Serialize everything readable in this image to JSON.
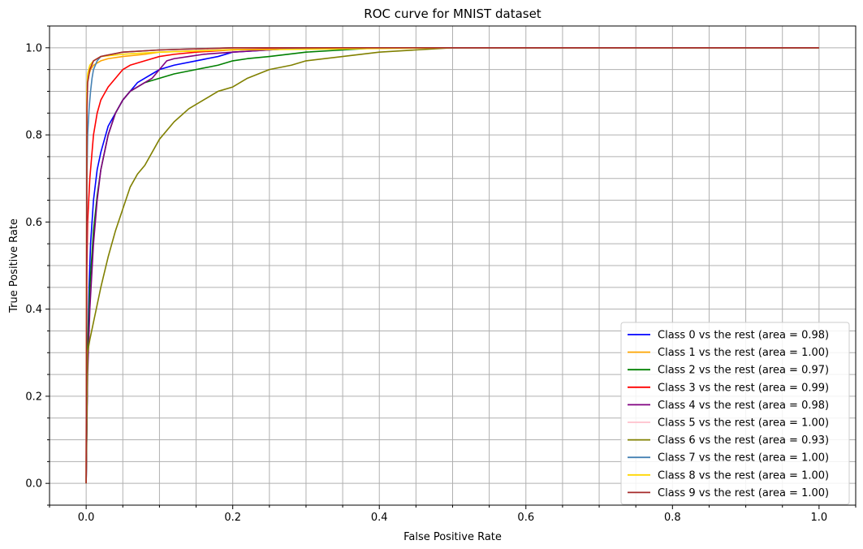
{
  "chart_data": {
    "type": "line",
    "title": "ROC curve for MNIST dataset",
    "xlabel": "False Positive Rate",
    "ylabel": "True Positive Rate",
    "xlim": [
      -0.05,
      1.05
    ],
    "ylim": [
      -0.05,
      1.05
    ],
    "x_ticks": [
      "0.0",
      "0.2",
      "0.4",
      "0.6",
      "0.8",
      "1.0"
    ],
    "y_ticks": [
      "0.0",
      "0.2",
      "0.4",
      "0.6",
      "0.8",
      "1.0"
    ],
    "grid": true,
    "legend_position": "lower-right",
    "series": [
      {
        "name": "Class 0 vs the rest (area = 0.98)",
        "color": "#0000ff",
        "x": [
          0,
          0.002,
          0.004,
          0.006,
          0.01,
          0.015,
          0.02,
          0.025,
          0.03,
          0.04,
          0.05,
          0.06,
          0.07,
          0.08,
          0.09,
          0.1,
          0.12,
          0.15,
          0.18,
          0.2,
          0.25,
          0.3,
          0.4,
          0.5,
          0.7,
          1.0
        ],
        "y": [
          0,
          0.3,
          0.45,
          0.55,
          0.65,
          0.72,
          0.76,
          0.79,
          0.82,
          0.85,
          0.88,
          0.9,
          0.92,
          0.93,
          0.94,
          0.95,
          0.96,
          0.97,
          0.98,
          0.99,
          0.995,
          1.0,
          1.0,
          1.0,
          1.0,
          1.0
        ]
      },
      {
        "name": "Class 1 vs the rest (area = 1.00)",
        "color": "#ffa500",
        "x": [
          0,
          0.001,
          0.002,
          0.004,
          0.006,
          0.01,
          0.02,
          0.03,
          0.05,
          0.08,
          0.1,
          0.15,
          0.2,
          0.3,
          0.4,
          0.6,
          1.0
        ],
        "y": [
          0,
          0.88,
          0.92,
          0.94,
          0.95,
          0.96,
          0.97,
          0.975,
          0.98,
          0.985,
          0.99,
          0.993,
          0.996,
          0.998,
          1.0,
          1.0,
          1.0
        ]
      },
      {
        "name": "Class 2 vs the rest (area = 0.97)",
        "color": "#008000",
        "x": [
          0,
          0.002,
          0.005,
          0.01,
          0.015,
          0.02,
          0.03,
          0.04,
          0.05,
          0.06,
          0.07,
          0.08,
          0.1,
          0.12,
          0.15,
          0.18,
          0.2,
          0.22,
          0.25,
          0.3,
          0.35,
          0.4,
          0.5,
          1.0
        ],
        "y": [
          0,
          0.3,
          0.45,
          0.58,
          0.66,
          0.72,
          0.8,
          0.85,
          0.88,
          0.9,
          0.91,
          0.92,
          0.93,
          0.94,
          0.95,
          0.96,
          0.97,
          0.975,
          0.98,
          0.99,
          0.995,
          1.0,
          1.0,
          1.0
        ]
      },
      {
        "name": "Class 3 vs the rest (area = 0.99)",
        "color": "#ff0000",
        "x": [
          0,
          0.001,
          0.002,
          0.005,
          0.008,
          0.01,
          0.015,
          0.02,
          0.03,
          0.04,
          0.05,
          0.06,
          0.08,
          0.1,
          0.12,
          0.15,
          0.2,
          0.3,
          1.0
        ],
        "y": [
          0,
          0.5,
          0.6,
          0.7,
          0.76,
          0.8,
          0.85,
          0.88,
          0.91,
          0.93,
          0.95,
          0.96,
          0.97,
          0.98,
          0.985,
          0.99,
          0.995,
          1.0,
          1.0
        ]
      },
      {
        "name": "Class 4 vs the rest (area = 0.98)",
        "color": "#800080",
        "x": [
          0,
          0.002,
          0.005,
          0.01,
          0.015,
          0.02,
          0.03,
          0.04,
          0.05,
          0.06,
          0.07,
          0.08,
          0.09,
          0.1,
          0.11,
          0.12,
          0.14,
          0.16,
          0.2,
          0.25,
          0.3,
          0.4,
          1.0
        ],
        "y": [
          0,
          0.25,
          0.4,
          0.55,
          0.65,
          0.72,
          0.8,
          0.85,
          0.88,
          0.9,
          0.91,
          0.92,
          0.93,
          0.95,
          0.97,
          0.975,
          0.98,
          0.985,
          0.99,
          0.995,
          1.0,
          1.0,
          1.0
        ]
      },
      {
        "name": "Class 5 vs the rest (area = 1.00)",
        "color": "#ffc0cb",
        "x": [
          0,
          0.001,
          0.002,
          0.005,
          0.01,
          0.02,
          0.05,
          0.1,
          0.2,
          0.4,
          1.0
        ],
        "y": [
          0,
          0.85,
          0.92,
          0.95,
          0.97,
          0.98,
          0.99,
          0.995,
          1.0,
          1.0,
          1.0
        ]
      },
      {
        "name": "Class 6 vs the rest (area = 0.93)",
        "color": "#808000",
        "x": [
          0,
          0.002,
          0.005,
          0.01,
          0.015,
          0.02,
          0.03,
          0.04,
          0.05,
          0.06,
          0.07,
          0.08,
          0.09,
          0.1,
          0.12,
          0.14,
          0.16,
          0.18,
          0.2,
          0.22,
          0.25,
          0.28,
          0.3,
          0.35,
          0.4,
          0.5,
          0.6,
          1.0
        ],
        "y": [
          0,
          0.3,
          0.33,
          0.37,
          0.41,
          0.45,
          0.52,
          0.58,
          0.63,
          0.68,
          0.71,
          0.73,
          0.76,
          0.79,
          0.83,
          0.86,
          0.88,
          0.9,
          0.91,
          0.93,
          0.95,
          0.96,
          0.97,
          0.98,
          0.99,
          1.0,
          1.0,
          1.0
        ]
      },
      {
        "name": "Class 7 vs the rest (area = 1.00)",
        "color": "#4682b4",
        "x": [
          0,
          0.001,
          0.002,
          0.004,
          0.006,
          0.008,
          0.01,
          0.015,
          0.02,
          0.05,
          0.1,
          0.2,
          1.0
        ],
        "y": [
          0,
          0.7,
          0.8,
          0.86,
          0.9,
          0.93,
          0.95,
          0.97,
          0.98,
          0.99,
          0.995,
          1.0,
          1.0
        ]
      },
      {
        "name": "Class 8 vs the rest (area = 1.00)",
        "color": "#ffd700",
        "x": [
          0,
          0.001,
          0.002,
          0.005,
          0.01,
          0.02,
          0.05,
          0.1,
          0.2,
          0.5,
          1.0
        ],
        "y": [
          0,
          0.9,
          0.94,
          0.96,
          0.97,
          0.98,
          0.985,
          0.99,
          0.995,
          1.0,
          1.0
        ]
      },
      {
        "name": "Class 9 vs the rest (area = 1.00)",
        "color": "#a52a2a",
        "x": [
          0,
          0.001,
          0.002,
          0.005,
          0.01,
          0.02,
          0.05,
          0.1,
          0.2,
          0.3,
          1.0
        ],
        "y": [
          0,
          0.85,
          0.92,
          0.95,
          0.97,
          0.98,
          0.99,
          0.995,
          1.0,
          1.0,
          1.0
        ]
      }
    ]
  }
}
